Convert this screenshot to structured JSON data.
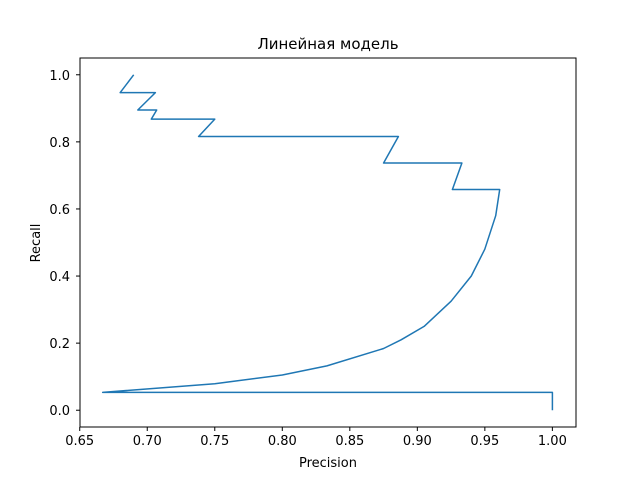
{
  "chart_data": {
    "type": "line",
    "title": "Линейная модель",
    "xlabel": "Precision",
    "ylabel": "Recall",
    "xlim": [
      0.65,
      1.0
    ],
    "ylim": [
      0.0,
      1.0
    ],
    "xticks": [
      "0.65",
      "0.70",
      "0.75",
      "0.80",
      "0.85",
      "0.90",
      "0.95",
      "1.00"
    ],
    "yticks": [
      "0.0",
      "0.2",
      "0.4",
      "0.6",
      "0.8",
      "1.0"
    ],
    "grid": false,
    "line_color": "#1f77b4",
    "series": [
      {
        "x": [
          0.69,
          0.68,
          0.706,
          0.693,
          0.707,
          0.703,
          0.75,
          0.738,
          0.886,
          0.875,
          0.933,
          0.926,
          0.961,
          0.958,
          0.95,
          0.94,
          0.925,
          0.905,
          0.888,
          0.875,
          0.833,
          0.8,
          0.75,
          0.667,
          1.0,
          1.0
        ],
        "y": [
          1.0,
          0.947,
          0.947,
          0.895,
          0.895,
          0.868,
          0.868,
          0.816,
          0.816,
          0.737,
          0.737,
          0.658,
          0.658,
          0.58,
          0.48,
          0.4,
          0.325,
          0.25,
          0.21,
          0.184,
          0.132,
          0.105,
          0.079,
          0.053,
          0.053,
          0.0
        ]
      }
    ]
  }
}
